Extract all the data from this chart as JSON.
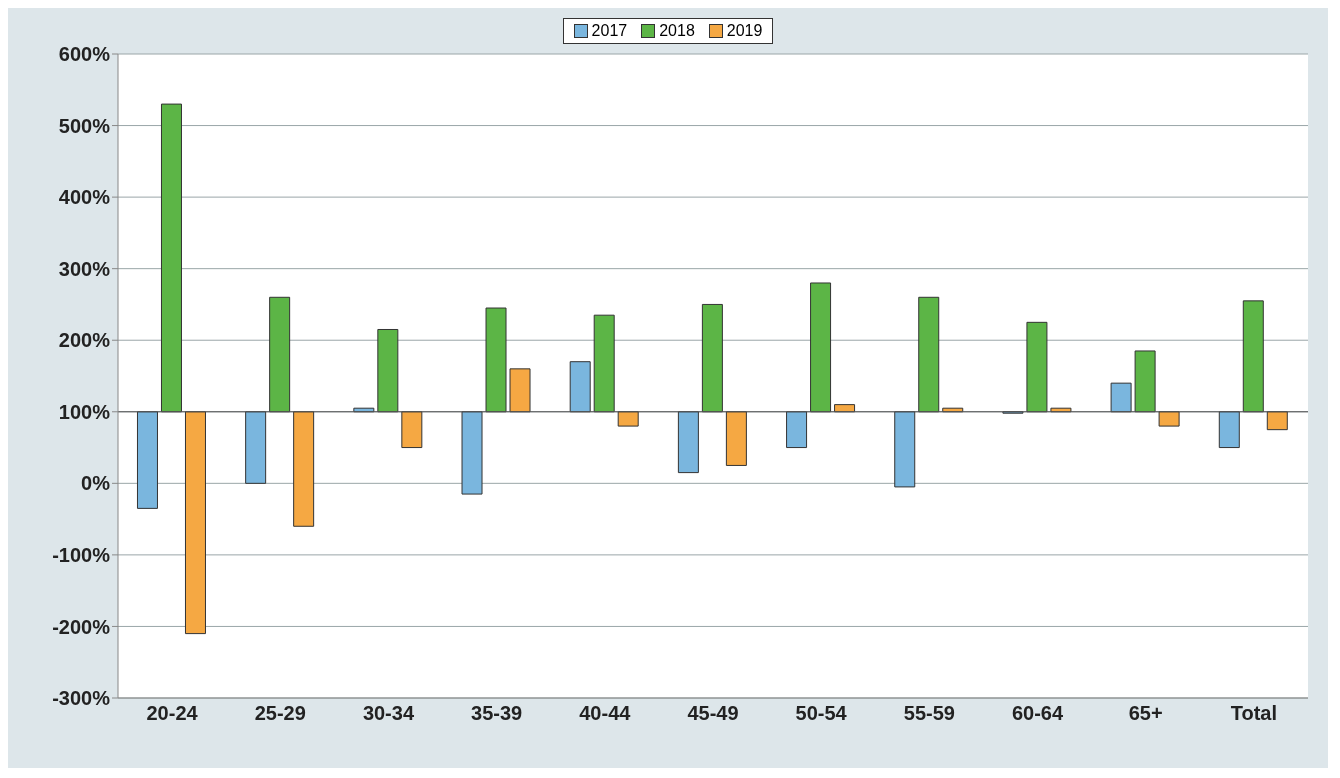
{
  "chart_data": {
    "type": "bar",
    "categories": [
      "20-24",
      "25-29",
      "30-34",
      "35-39",
      "40-44",
      "45-49",
      "50-54",
      "55-59",
      "60-64",
      "65+",
      "Total"
    ],
    "series": [
      {
        "name": "2017",
        "color": "#7ab6de",
        "base": [
          100,
          100,
          100,
          100,
          100,
          100,
          100,
          100,
          100,
          100,
          100
        ],
        "values": [
          -135,
          -100,
          5,
          -115,
          70,
          -85,
          -50,
          -105,
          -2,
          40,
          -50
        ]
      },
      {
        "name": "2018",
        "color": "#5cb546",
        "base": [
          100,
          100,
          100,
          100,
          100,
          100,
          100,
          100,
          100,
          100,
          100
        ],
        "values": [
          430,
          160,
          115,
          145,
          135,
          150,
          180,
          160,
          125,
          85,
          155
        ]
      },
      {
        "name": "2019",
        "color": "#f5a843",
        "base": [
          100,
          100,
          100,
          100,
          100,
          100,
          100,
          100,
          100,
          100,
          100
        ],
        "values": [
          -310,
          -160,
          -50,
          60,
          -20,
          -75,
          10,
          5,
          5,
          -20,
          -25
        ]
      }
    ],
    "ylim": [
      -300,
      600
    ],
    "yticks": [
      {
        "value": -300,
        "label": "-300%"
      },
      {
        "value": -200,
        "label": "-200%"
      },
      {
        "value": -100,
        "label": "-100%"
      },
      {
        "value": 0,
        "label": "0%"
      },
      {
        "value": 100,
        "label": "100%"
      },
      {
        "value": 200,
        "label": "200%"
      },
      {
        "value": 300,
        "label": "300%"
      },
      {
        "value": 400,
        "label": "400%"
      },
      {
        "value": 500,
        "label": "500%"
      },
      {
        "value": 600,
        "label": "600%"
      }
    ],
    "ref_lines": [
      {
        "axis": "y",
        "value": 100,
        "color": "#555555"
      }
    ],
    "grid": "y",
    "legend": "top"
  }
}
